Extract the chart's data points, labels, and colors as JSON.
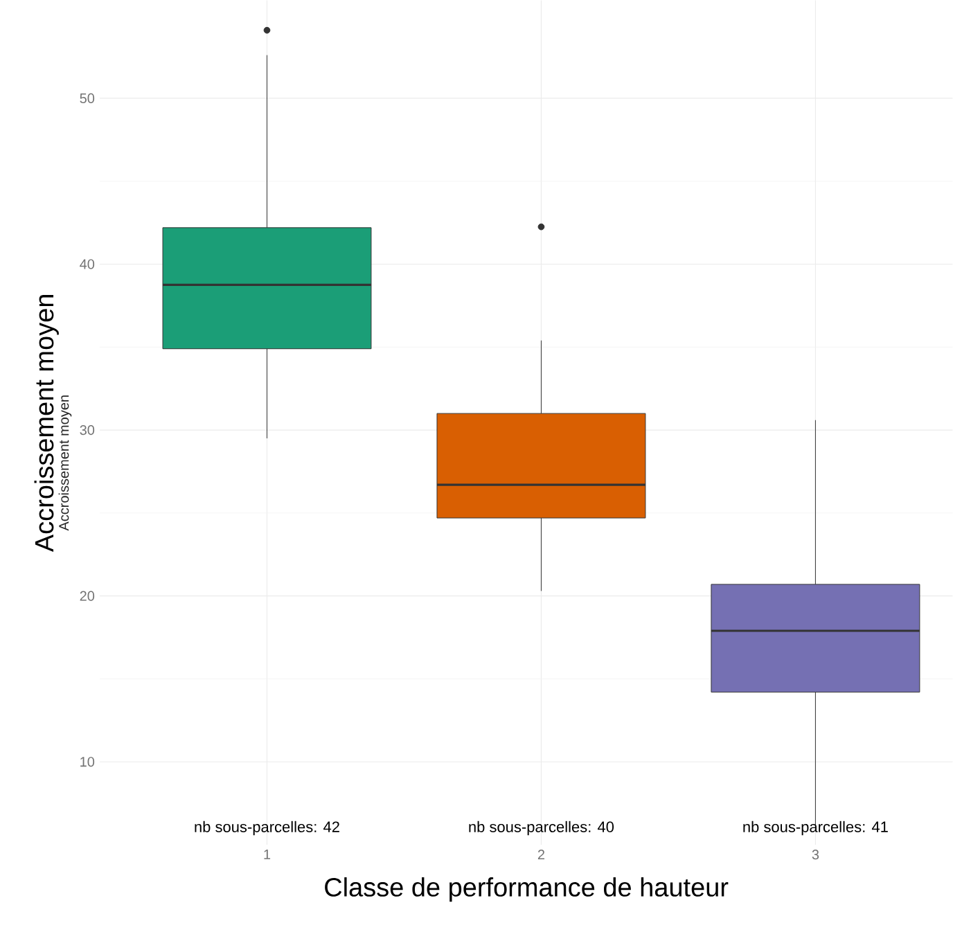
{
  "chart_data": {
    "type": "box",
    "xlabel": "Classe de performance de hauteur",
    "ylabel": "Accroissement moyen",
    "categories": [
      "1",
      "2",
      "3"
    ],
    "colors": [
      "#1b9e77",
      "#d95f02",
      "#7570b3"
    ],
    "boxes": [
      {
        "low": 29.5,
        "q1": 34.9,
        "median": 38.75,
        "q3": 42.2,
        "high": 52.6,
        "outliers": [
          54.1
        ]
      },
      {
        "low": 20.3,
        "q1": 24.7,
        "median": 26.7,
        "q3": 31.0,
        "high": 35.4,
        "outliers": [
          42.25
        ]
      },
      {
        "low": 6.0,
        "q1": 14.2,
        "median": 17.9,
        "q3": 20.7,
        "high": 30.6
      }
    ],
    "ylim": [
      5,
      55.9
    ],
    "yticks": [
      10,
      20,
      30,
      40,
      50
    ],
    "grid": true,
    "annotations": [
      "nb sous-parcelles: 42",
      "nb sous-parcelles: 40",
      "nb sous-parcelles: 41",
      "Accroissement moyen"
    ]
  }
}
